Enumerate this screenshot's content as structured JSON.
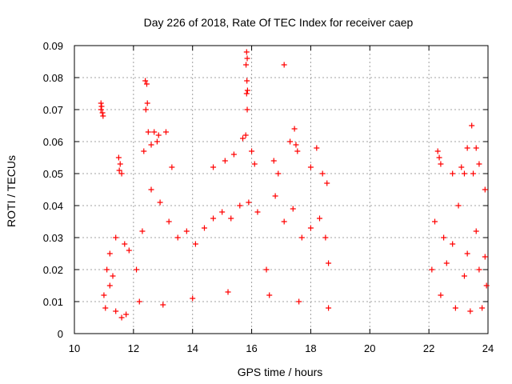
{
  "chart_data": {
    "type": "scatter",
    "title": "Day 226 of 2018, Rate Of TEC Index for receiver caep",
    "xlabel": "GPS time / hours",
    "ylabel": "ROTI / TECUs",
    "xlim": [
      10,
      24
    ],
    "ylim": [
      0,
      0.09
    ],
    "x_ticks": [
      10,
      12,
      14,
      16,
      18,
      20,
      22,
      24
    ],
    "x_tick_labels": [
      "10",
      "12",
      "14",
      "16",
      "18",
      "20",
      "22",
      "24"
    ],
    "y_ticks": [
      0,
      0.01,
      0.02,
      0.03,
      0.04,
      0.05,
      0.06,
      0.07,
      0.08,
      0.09
    ],
    "y_tick_labels": [
      "0",
      "0.01",
      "0.02",
      "0.03",
      "0.04",
      "0.05",
      "0.06",
      "0.07",
      "0.08",
      "0.09"
    ],
    "grid": true,
    "marker": "+",
    "marker_color": "#ff0000",
    "grid_color": "#a0a0a0",
    "series": [
      {
        "name": "ROTI",
        "points": [
          [
            10.9,
            0.072
          ],
          [
            10.92,
            0.071
          ],
          [
            10.95,
            0.069
          ],
          [
            10.97,
            0.068
          ],
          [
            10.9,
            0.07
          ],
          [
            11.5,
            0.055
          ],
          [
            11.55,
            0.053
          ],
          [
            11.52,
            0.051
          ],
          [
            11.6,
            0.05
          ],
          [
            12.4,
            0.079
          ],
          [
            12.45,
            0.078
          ],
          [
            12.47,
            0.072
          ],
          [
            12.42,
            0.07
          ],
          [
            12.5,
            0.063
          ],
          [
            12.7,
            0.063
          ],
          [
            12.85,
            0.062
          ],
          [
            13.1,
            0.063
          ],
          [
            12.35,
            0.057
          ],
          [
            12.6,
            0.059
          ],
          [
            12.8,
            0.06
          ],
          [
            13.3,
            0.052
          ],
          [
            14.7,
            0.052
          ],
          [
            15.1,
            0.054
          ],
          [
            15.4,
            0.056
          ],
          [
            15.7,
            0.061
          ],
          [
            15.83,
            0.088
          ],
          [
            15.85,
            0.086
          ],
          [
            15.81,
            0.084
          ],
          [
            15.84,
            0.079
          ],
          [
            15.86,
            0.076
          ],
          [
            15.83,
            0.075
          ],
          [
            15.85,
            0.07
          ],
          [
            15.8,
            0.062
          ],
          [
            16.0,
            0.057
          ],
          [
            16.1,
            0.053
          ],
          [
            16.75,
            0.054
          ],
          [
            16.9,
            0.05
          ],
          [
            17.1,
            0.084
          ],
          [
            17.45,
            0.064
          ],
          [
            17.5,
            0.059
          ],
          [
            17.55,
            0.057
          ],
          [
            17.3,
            0.06
          ],
          [
            18.2,
            0.058
          ],
          [
            18.0,
            0.052
          ],
          [
            18.4,
            0.05
          ],
          [
            11.0,
            0.012
          ],
          [
            11.05,
            0.008
          ],
          [
            11.2,
            0.015
          ],
          [
            11.4,
            0.007
          ],
          [
            11.6,
            0.005
          ],
          [
            11.75,
            0.006
          ],
          [
            11.3,
            0.018
          ],
          [
            11.1,
            0.02
          ],
          [
            11.2,
            0.025
          ],
          [
            11.4,
            0.03
          ],
          [
            11.7,
            0.028
          ],
          [
            11.85,
            0.026
          ],
          [
            12.1,
            0.02
          ],
          [
            12.3,
            0.032
          ],
          [
            12.6,
            0.045
          ],
          [
            12.9,
            0.041
          ],
          [
            13.2,
            0.035
          ],
          [
            13.5,
            0.03
          ],
          [
            13.8,
            0.032
          ],
          [
            14.1,
            0.028
          ],
          [
            14.4,
            0.033
          ],
          [
            14.7,
            0.036
          ],
          [
            15.0,
            0.038
          ],
          [
            15.3,
            0.036
          ],
          [
            15.6,
            0.04
          ],
          [
            15.9,
            0.041
          ],
          [
            16.2,
            0.038
          ],
          [
            16.5,
            0.02
          ],
          [
            16.8,
            0.043
          ],
          [
            17.1,
            0.035
          ],
          [
            17.4,
            0.039
          ],
          [
            17.7,
            0.03
          ],
          [
            18.0,
            0.033
          ],
          [
            18.3,
            0.036
          ],
          [
            18.5,
            0.03
          ],
          [
            18.6,
            0.022
          ],
          [
            18.55,
            0.047
          ],
          [
            18.6,
            0.008
          ],
          [
            12.2,
            0.01
          ],
          [
            13.0,
            0.009
          ],
          [
            14.0,
            0.011
          ],
          [
            15.2,
            0.013
          ],
          [
            16.6,
            0.012
          ],
          [
            17.6,
            0.01
          ],
          [
            22.3,
            0.057
          ],
          [
            22.35,
            0.055
          ],
          [
            22.4,
            0.053
          ],
          [
            22.8,
            0.05
          ],
          [
            23.1,
            0.052
          ],
          [
            23.2,
            0.05
          ],
          [
            23.3,
            0.058
          ],
          [
            23.45,
            0.065
          ],
          [
            23.6,
            0.058
          ],
          [
            23.7,
            0.053
          ],
          [
            23.5,
            0.05
          ],
          [
            23.9,
            0.045
          ],
          [
            22.2,
            0.035
          ],
          [
            22.5,
            0.03
          ],
          [
            22.8,
            0.028
          ],
          [
            23.0,
            0.04
          ],
          [
            23.3,
            0.025
          ],
          [
            23.6,
            0.032
          ],
          [
            23.9,
            0.024
          ],
          [
            22.4,
            0.012
          ],
          [
            22.9,
            0.008
          ],
          [
            23.4,
            0.007
          ],
          [
            23.8,
            0.008
          ],
          [
            23.95,
            0.015
          ],
          [
            22.1,
            0.02
          ],
          [
            22.6,
            0.022
          ],
          [
            23.2,
            0.018
          ],
          [
            23.7,
            0.02
          ]
        ]
      }
    ]
  }
}
